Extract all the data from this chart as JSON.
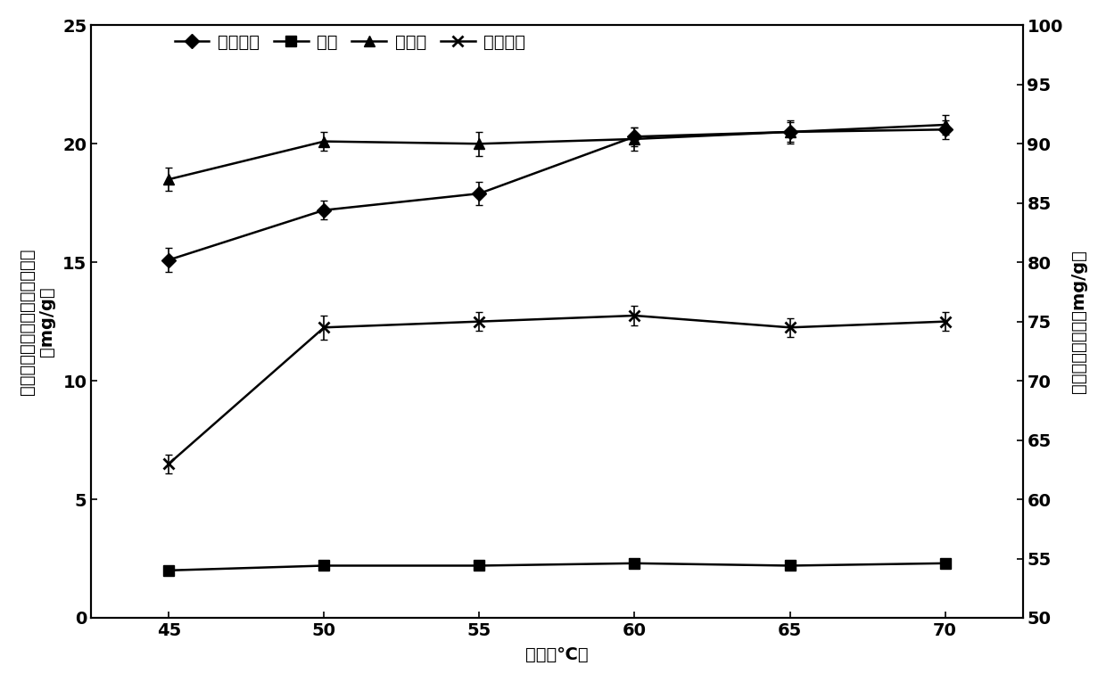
{
  "x": [
    45,
    50,
    55,
    60,
    65,
    70
  ],
  "procyanidin": [
    15.1,
    17.2,
    17.9,
    20.3,
    20.5,
    20.6
  ],
  "procyanidin_err": [
    0.5,
    0.4,
    0.5,
    0.4,
    0.4,
    0.4
  ],
  "flavonoid": [
    2.0,
    2.2,
    2.2,
    2.3,
    2.2,
    2.3
  ],
  "flavonoid_err": [
    0.08,
    0.08,
    0.08,
    0.08,
    0.08,
    0.08
  ],
  "ginkgolide": [
    18.5,
    20.1,
    20.0,
    20.2,
    20.5,
    20.8
  ],
  "ginkgolide_err": [
    0.5,
    0.4,
    0.5,
    0.5,
    0.5,
    0.4
  ],
  "polyvinyl": [
    63.0,
    74.5,
    75.0,
    75.5,
    74.5,
    75.0
  ],
  "polyvinyl_err": [
    0.8,
    1.0,
    0.8,
    0.8,
    0.8,
    0.8
  ],
  "left_ylim": [
    0,
    25
  ],
  "left_yticks": [
    0,
    5,
    10,
    15,
    20,
    25
  ],
  "right_ylim": [
    50,
    100
  ],
  "right_yticks": [
    50,
    55,
    60,
    65,
    70,
    75,
    80,
    85,
    90,
    95,
    100
  ],
  "xlabel": "温度（℃）",
  "ylabel_left_line1": "原花青素、黄饀、茋内酯提取率",
  "ylabel_left_line2": "（mg/g）",
  "ylabel_right_line1": "聚戊烯醇提取率（mg/g）",
  "legend_labels": [
    "原花青素",
    "黄饀",
    "茋内酯",
    "聚戊烯醇"
  ],
  "xticks": [
    45,
    50,
    55,
    60,
    65,
    70
  ],
  "line_color": "black",
  "tick_fontsize": 14,
  "label_fontsize": 14,
  "legend_fontsize": 14
}
